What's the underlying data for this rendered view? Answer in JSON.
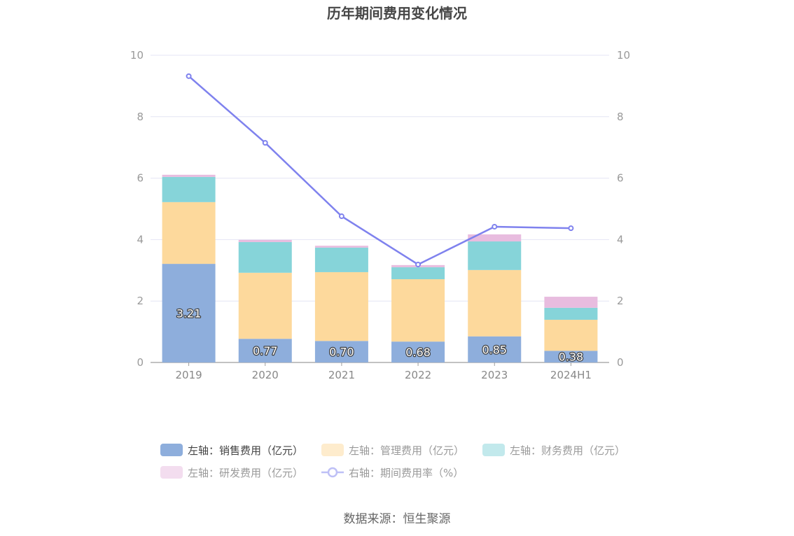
{
  "chart_data": {
    "type": "bar",
    "title": "历年期间费用变化情况",
    "categories": [
      "2019",
      "2020",
      "2021",
      "2022",
      "2023",
      "2024H1"
    ],
    "series": [
      {
        "name": "左轴：销售费用（亿元）",
        "type": "bar",
        "color": "#8eaedc",
        "show_labels": true,
        "values": [
          3.21,
          0.77,
          0.7,
          0.68,
          0.85,
          0.38
        ]
      },
      {
        "name": "左轴：管理费用（亿元）",
        "type": "bar",
        "color": "#fdd99c",
        "show_labels": false,
        "values": [
          2.01,
          2.15,
          2.24,
          2.03,
          2.16,
          1.01
        ]
      },
      {
        "name": "左轴：财务费用（亿元）",
        "type": "bar",
        "color": "#86d4d9",
        "show_labels": false,
        "values": [
          0.82,
          1.0,
          0.8,
          0.39,
          0.93,
          0.39
        ]
      },
      {
        "name": "左轴：研发费用（亿元）",
        "type": "bar",
        "color": "#e8bcdf",
        "show_labels": false,
        "values": [
          0.07,
          0.07,
          0.06,
          0.07,
          0.23,
          0.36
        ]
      },
      {
        "name": "右轴：期间费用率（%）",
        "type": "line",
        "color": "#7f82ee",
        "show_labels": false,
        "values": [
          9.32,
          7.15,
          4.76,
          3.19,
          4.42,
          4.37
        ]
      }
    ],
    "y_left": {
      "min": 0,
      "max": 10,
      "ticks": [
        0,
        2,
        4,
        6,
        8,
        10
      ]
    },
    "y_right": {
      "min": 0,
      "max": 10,
      "ticks": [
        0,
        2,
        4,
        6,
        8,
        10
      ]
    },
    "grid": true,
    "stacked": true
  },
  "source": "数据来源：恒生聚源"
}
